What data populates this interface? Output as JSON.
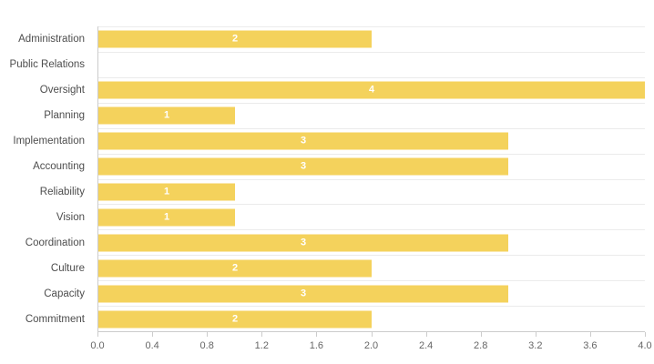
{
  "chart_data": {
    "type": "bar",
    "orientation": "horizontal",
    "title": "",
    "xlabel": "",
    "ylabel": "",
    "categories": [
      "Administration",
      "Public Relations",
      "Oversight",
      "Planning",
      "Implementation",
      "Accounting",
      "Reliability",
      "Vision",
      "Coordination",
      "Culture",
      "Capacity",
      "Commitment"
    ],
    "values": [
      2,
      0,
      4,
      1,
      3,
      3,
      1,
      1,
      3,
      2,
      3,
      2
    ],
    "bar_labels": [
      "2",
      "",
      "4",
      "1",
      "3",
      "3",
      "1",
      "1",
      "3",
      "2",
      "3",
      "2"
    ],
    "xlim": [
      0,
      4
    ],
    "x_ticks": [
      "0.0",
      "0.4",
      "0.8",
      "1.2",
      "1.6",
      "2.0",
      "2.4",
      "2.8",
      "3.2",
      "3.6",
      "4.0"
    ],
    "grid": "horizontal row separators only",
    "legend": "none",
    "value_label_position": "centered in bar, white bold"
  },
  "colors": {
    "bar": "#F4D25C",
    "bar_label": "#FFFFFF",
    "grid_line": "#EBEBEB",
    "axis_line": "#CCCCCC",
    "tick_label": "#666666",
    "category_label": "#4D4D4D",
    "background": "#FFFFFF"
  }
}
